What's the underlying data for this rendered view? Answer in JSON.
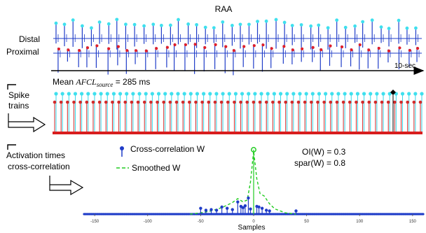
{
  "title": "RAA",
  "labels": {
    "distal": "Distal",
    "proximal": "Proximal",
    "time_scale": "10-sec",
    "spike_trains_line1": "Spike",
    "spike_trains_line2": "trains",
    "activation_line1": "Activation times",
    "activation_line2": "cross-correlation",
    "mean_afcl_prefix": "Mean ",
    "mean_afcl_var": "AFCL",
    "mean_afcl_sub": "source",
    "mean_afcl_value": " = 285 ms"
  },
  "legend": {
    "cross_correlation": "Cross-correlation W",
    "smoothed": "Smoothed W"
  },
  "metrics": {
    "oi": "OI(W) = 0.3",
    "spar": "spar(W) = 0.8"
  },
  "colors": {
    "distal_spike": "#1f3cc8",
    "distal_marker": "#3ee0ee",
    "proximal_marker": "#e0202a",
    "stem_cyan": "#35d6e8",
    "stem_red": "#d42a2a",
    "baseline_red": "#d81e1e",
    "stem_blue": "#1f3cc8",
    "smooth_green": "#22cc22"
  },
  "chart_data": {
    "type": "scatter",
    "title": "",
    "xlabel": "Samples",
    "ylabel": "",
    "xlim": [
      -160,
      160
    ],
    "x_ticks": [
      "-150",
      "-100",
      "-50",
      "0",
      "50",
      "100",
      "150"
    ],
    "series": [
      {
        "name": "Cross-correlation W",
        "style": "stem",
        "points": [
          [
            -50,
            0.09
          ],
          [
            -45,
            0.06
          ],
          [
            -40,
            0.07
          ],
          [
            -35,
            0.06
          ],
          [
            -30,
            0.11
          ],
          [
            -25,
            0.09
          ],
          [
            -20,
            0.07
          ],
          [
            -15,
            0.19
          ],
          [
            -12,
            0.12
          ],
          [
            -10,
            0.1
          ],
          [
            -8,
            0.13
          ],
          [
            -5,
            0.25
          ],
          [
            -3,
            0.08
          ],
          [
            0,
            1.0
          ],
          [
            3,
            0.12
          ],
          [
            5,
            0.11
          ],
          [
            8,
            0.09
          ],
          [
            12,
            0.06
          ],
          [
            15,
            0.05
          ],
          [
            40,
            0.05
          ]
        ]
      },
      {
        "name": "Smoothed W",
        "style": "dashed",
        "points": [
          [
            -60,
            0.0
          ],
          [
            -50,
            0.02
          ],
          [
            -40,
            0.05
          ],
          [
            -30,
            0.1
          ],
          [
            -20,
            0.18
          ],
          [
            -15,
            0.24
          ],
          [
            -10,
            0.19
          ],
          [
            -6,
            0.22
          ],
          [
            -3,
            0.5
          ],
          [
            0,
            0.98
          ],
          [
            3,
            0.55
          ],
          [
            6,
            0.32
          ],
          [
            10,
            0.28
          ],
          [
            15,
            0.16
          ],
          [
            20,
            0.08
          ],
          [
            30,
            0.02
          ],
          [
            40,
            0.0
          ]
        ]
      }
    ]
  }
}
